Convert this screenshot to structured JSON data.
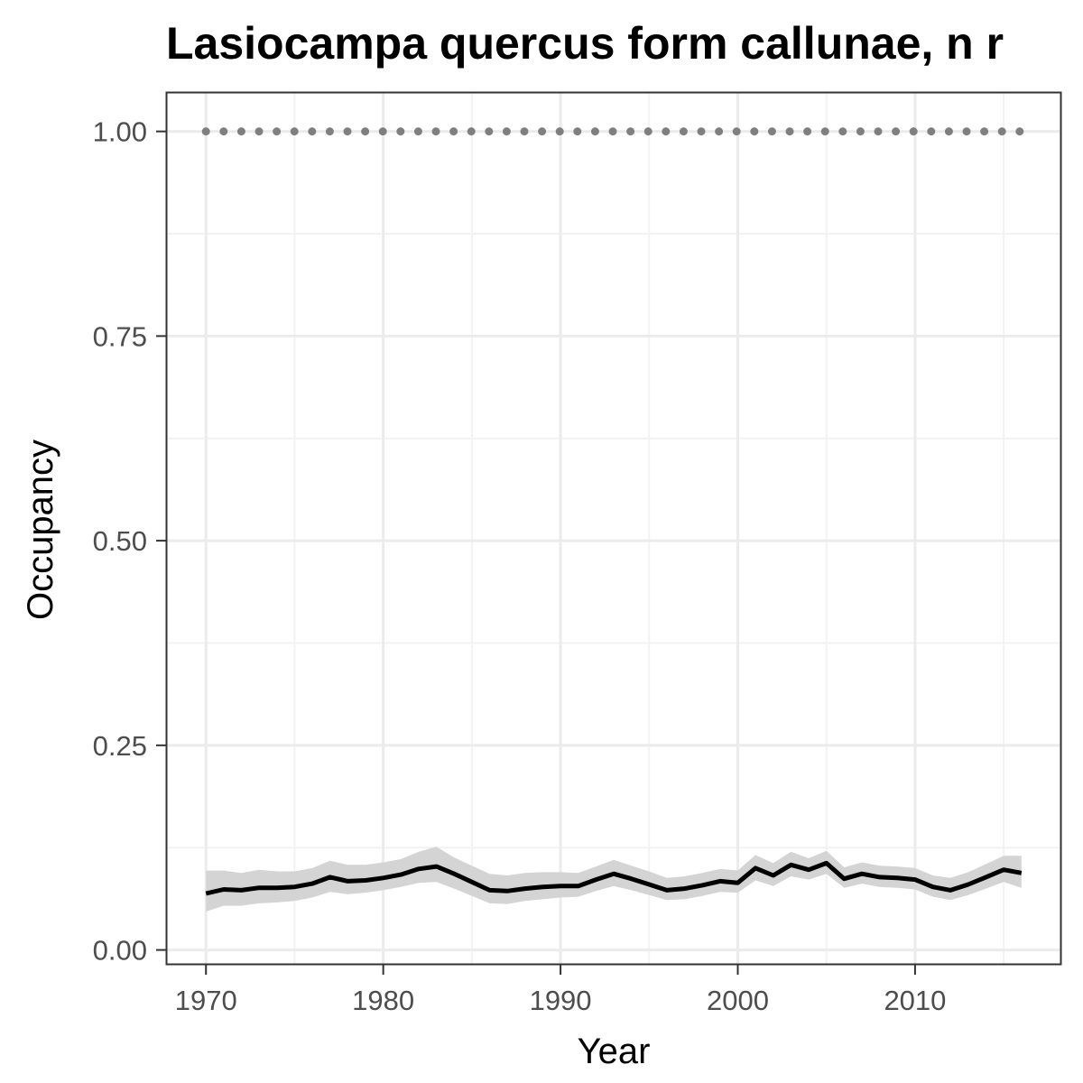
{
  "chart_data": {
    "type": "line",
    "title": "Lasiocampa quercus form callunae, n r",
    "xlabel": "Year",
    "ylabel": "Occupancy",
    "xlim": [
      1967.8,
      2018.2
    ],
    "ylim": [
      -0.017,
      1.047
    ],
    "x_ticks": [
      1970,
      1980,
      1990,
      2000,
      2010
    ],
    "x_tick_labels": [
      "1970",
      "1980",
      "1990",
      "2000",
      "2010"
    ],
    "y_ticks": [
      0,
      0.25,
      0.5,
      0.75,
      1.0
    ],
    "y_tick_labels": [
      "0.00",
      "0.25",
      "0.50",
      "0.75",
      "1.00"
    ],
    "grid": true,
    "series": [
      {
        "type": "line-with-band",
        "x": [
          1970,
          1971,
          1972,
          1973,
          1974,
          1975,
          1976,
          1977,
          1978,
          1979,
          1980,
          1981,
          1982,
          1983,
          1984,
          1985,
          1986,
          1987,
          1988,
          1989,
          1990,
          1991,
          1992,
          1993,
          1994,
          1995,
          1996,
          1997,
          1998,
          1999,
          2000,
          2001,
          2002,
          2003,
          2004,
          2005,
          2006,
          2007,
          2008,
          2009,
          2010,
          2011,
          2012,
          2013,
          2014,
          2015,
          2016
        ],
        "y": [
          0.069,
          0.074,
          0.073,
          0.076,
          0.076,
          0.077,
          0.081,
          0.089,
          0.084,
          0.085,
          0.088,
          0.092,
          0.099,
          0.102,
          0.093,
          0.083,
          0.073,
          0.072,
          0.075,
          0.077,
          0.078,
          0.078,
          0.086,
          0.093,
          0.087,
          0.08,
          0.073,
          0.075,
          0.079,
          0.084,
          0.082,
          0.1,
          0.091,
          0.104,
          0.098,
          0.106,
          0.087,
          0.093,
          0.089,
          0.088,
          0.086,
          0.077,
          0.073,
          0.08,
          0.089,
          0.098,
          0.094
        ],
        "lower": [
          0.047,
          0.054,
          0.054,
          0.057,
          0.058,
          0.06,
          0.064,
          0.071,
          0.068,
          0.07,
          0.073,
          0.077,
          0.082,
          0.083,
          0.075,
          0.066,
          0.057,
          0.056,
          0.06,
          0.062,
          0.064,
          0.065,
          0.072,
          0.078,
          0.073,
          0.067,
          0.061,
          0.062,
          0.066,
          0.071,
          0.07,
          0.085,
          0.078,
          0.09,
          0.086,
          0.093,
          0.076,
          0.081,
          0.077,
          0.076,
          0.074,
          0.065,
          0.061,
          0.067,
          0.075,
          0.083,
          0.076
        ],
        "upper": [
          0.097,
          0.097,
          0.094,
          0.098,
          0.096,
          0.096,
          0.1,
          0.109,
          0.104,
          0.104,
          0.107,
          0.111,
          0.12,
          0.126,
          0.113,
          0.103,
          0.093,
          0.091,
          0.094,
          0.095,
          0.095,
          0.094,
          0.102,
          0.11,
          0.103,
          0.096,
          0.088,
          0.09,
          0.094,
          0.099,
          0.097,
          0.116,
          0.106,
          0.12,
          0.112,
          0.121,
          0.101,
          0.107,
          0.103,
          0.102,
          0.1,
          0.091,
          0.088,
          0.095,
          0.105,
          0.115,
          0.115
        ],
        "line_color": "#000000",
        "band_color": "#d4d4d4"
      },
      {
        "type": "dotted-line",
        "x": [
          1970,
          2016
        ],
        "y": [
          1.0,
          1.0
        ],
        "color": "#7f7f7f"
      }
    ]
  }
}
